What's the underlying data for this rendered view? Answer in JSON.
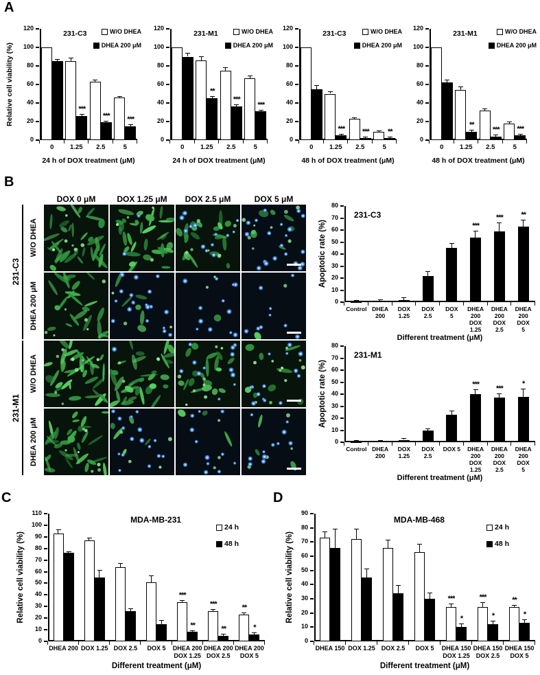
{
  "figure": {
    "background": "#ffffff"
  },
  "panels": {
    "a": {
      "label": "A"
    },
    "b": {
      "label": "B"
    },
    "c": {
      "label": "C"
    },
    "d": {
      "label": "D"
    }
  },
  "colors": {
    "axis": "#000000",
    "bar_open_fill": "#ffffff",
    "bar_filled_fill": "#000000",
    "cell_green": "#3fae4a",
    "cell_green_bright": "#8fe896",
    "nucleus_blue": "#3d86d8",
    "nucleus_blue_center": "#d6efff",
    "tile_bg_green": "#07130b",
    "tile_bg_blue": "#060d15",
    "scale_bar": "#ffffff"
  },
  "chart_data": {
    "a1": {
      "type": "bar",
      "title": "231-C3",
      "ylabel": "Relative cell viability (%)",
      "xlabel": "24 h of DOX treatment (μM)",
      "ymax": 120,
      "ystep": 20,
      "categories": [
        "0",
        "1.25",
        "2.5",
        "5"
      ],
      "legend": {
        "items": [
          {
            "label": "W/O DHEA",
            "fill": "white"
          },
          {
            "label": "DHEA 200 μM",
            "fill": "black"
          }
        ]
      },
      "series": [
        {
          "name": "W/O DHEA",
          "fill": "white",
          "values": [
            100,
            85,
            63,
            46
          ],
          "err": [
            0,
            3,
            1.5,
            1
          ],
          "sig": [
            "",
            "",
            "",
            ""
          ]
        },
        {
          "name": "DHEA 200 μM",
          "fill": "black",
          "values": [
            85,
            26,
            19,
            15
          ],
          "err": [
            2,
            1.5,
            1,
            1
          ],
          "sig": [
            "",
            "***",
            "***",
            "***"
          ]
        }
      ]
    },
    "a2": {
      "type": "bar",
      "title": "231-M1",
      "ylabel": null,
      "xlabel": "24 h of DOX treatment (μM)",
      "ymax": 120,
      "ystep": 20,
      "categories": [
        "0",
        "1.25",
        "2.5",
        "5"
      ],
      "legend": {
        "items": [
          {
            "label": "W/O DHEA",
            "fill": "white"
          },
          {
            "label": "DHEA 200 μM",
            "fill": "black"
          }
        ]
      },
      "series": [
        {
          "name": "W/O DHEA",
          "fill": "white",
          "values": [
            100,
            86,
            75,
            67
          ],
          "err": [
            0,
            4,
            3,
            2
          ],
          "sig": [
            "",
            "",
            "",
            ""
          ]
        },
        {
          "name": "DHEA 200 μM",
          "fill": "black",
          "values": [
            90,
            45,
            36,
            31
          ],
          "err": [
            3,
            2,
            2,
            1
          ],
          "sig": [
            "",
            "**",
            "***",
            "***"
          ]
        }
      ]
    },
    "a3": {
      "type": "bar",
      "title": "231-C3",
      "ylabel": null,
      "xlabel": "48 h of DOX treatment (μM)",
      "ymax": 120,
      "ystep": 20,
      "categories": [
        "0",
        "1.25",
        "2.5",
        "5"
      ],
      "legend": {
        "items": [
          {
            "label": "W/O DHEA",
            "fill": "white"
          },
          {
            "label": "DHEA 200 μM",
            "fill": "black"
          }
        ]
      },
      "series": [
        {
          "name": "W/O DHEA",
          "fill": "white",
          "values": [
            100,
            50,
            23,
            9
          ],
          "err": [
            0,
            2,
            1,
            0.8
          ],
          "sig": [
            "",
            "",
            "",
            ""
          ]
        },
        {
          "name": "DHEA 200 μM",
          "fill": "black",
          "values": [
            55,
            5,
            2,
            2
          ],
          "err": [
            3.5,
            1,
            0.6,
            0.6
          ],
          "sig": [
            "",
            "***",
            "***",
            "**"
          ]
        }
      ]
    },
    "a4": {
      "type": "bar",
      "title": "231-M1",
      "ylabel": null,
      "xlabel": "48 h of DOX treatment (μM)",
      "ymax": 120,
      "ystep": 20,
      "categories": [
        "0",
        "1.25",
        "2.5",
        "5"
      ],
      "legend": {
        "items": [
          {
            "label": "W/O DHEA",
            "fill": "white"
          },
          {
            "label": "DHEA 200 μM",
            "fill": "black"
          }
        ]
      },
      "series": [
        {
          "name": "W/O DHEA",
          "fill": "white",
          "values": [
            100,
            54,
            32,
            18
          ],
          "err": [
            0,
            3,
            1.5,
            1
          ],
          "sig": [
            "",
            "",
            "",
            ""
          ]
        },
        {
          "name": "DHEA 200 μM",
          "fill": "black",
          "values": [
            62,
            9,
            4,
            5
          ],
          "err": [
            2.5,
            1.2,
            1,
            1
          ],
          "sig": [
            "",
            "**",
            "***",
            "***"
          ]
        }
      ]
    },
    "b1": {
      "type": "bar",
      "title": "231-C3",
      "ylabel": "Apoptotic rate (%)",
      "xlabel": "Different treatment (μM)",
      "ymax": 80,
      "ystep": 10,
      "categories": [
        "Control",
        "DHEA\n200",
        "DOX\n1.25",
        "DOX\n2.5",
        "DOX\n5",
        "DHEA\n200\nDOX\n1.25",
        "DHEA\n200\nDOX\n2.5",
        "DHEA\n200\nDOX\n5"
      ],
      "legend": null,
      "series": [
        {
          "name": "Apoptotic rate",
          "fill": "black",
          "values": [
            0.5,
            1,
            2,
            22,
            45,
            54,
            59,
            63
          ],
          "err": [
            0.3,
            0.5,
            1.5,
            3,
            3.5,
            5,
            6.5,
            5
          ],
          "sig": [
            "",
            "",
            "",
            "",
            "",
            "***",
            "***",
            "**"
          ]
        }
      ]
    },
    "b2": {
      "type": "bar",
      "title": "231-M1",
      "ylabel": "Apoptotic rate (%)",
      "xlabel": "Different treatment (μM)",
      "ymax": 80,
      "ystep": 10,
      "categories": [
        "Control",
        "DHEA\n200",
        "DOX\n1.25",
        "DOX\n2.5",
        "DOX 5",
        "DHEA\n200\nDOX\n1.25",
        "DHEA\n200\nDOX\n2.5",
        "DHEA\n200\nDOX\n5"
      ],
      "legend": null,
      "series": [
        {
          "name": "Apoptotic rate",
          "fill": "black",
          "values": [
            0.5,
            1,
            2,
            10,
            23,
            40,
            37,
            38
          ],
          "err": [
            0.3,
            0.4,
            0.8,
            1,
            2.5,
            3.5,
            3,
            6
          ],
          "sig": [
            "",
            "",
            "",
            "",
            "",
            "***",
            "***",
            "*"
          ]
        }
      ]
    },
    "c": {
      "type": "bar",
      "title": "MDA-MB-231",
      "ylabel": "Relative cell viability (%)",
      "xlabel": "Different treatment (μM)",
      "ymax": 110,
      "ystep": 10,
      "categories": [
        "DHEA 200",
        "DOX 1.25",
        "DOX 2.5",
        "DOX 5",
        "DHEA 200\nDOX 1.25",
        "DHEA 200\nDOX 2.5",
        "DHEA 200\nDOX 5"
      ],
      "legend": {
        "items": [
          {
            "label": "24 h",
            "fill": "white"
          },
          {
            "label": "48 h",
            "fill": "black"
          }
        ]
      },
      "series": [
        {
          "name": "24 h",
          "fill": "white",
          "values": [
            93,
            87,
            64,
            51,
            34,
            26,
            23
          ],
          "err": [
            3,
            2,
            3,
            5,
            1,
            1,
            1
          ],
          "sig": [
            "",
            "",
            "",
            "",
            "***",
            "***",
            "**"
          ]
        },
        {
          "name": "48 h",
          "fill": "black",
          "values": [
            76,
            55,
            26,
            15,
            8,
            5,
            6
          ],
          "err": [
            1,
            6,
            2,
            3,
            1,
            1,
            1
          ],
          "sig": [
            "",
            "",
            "",
            "",
            "**",
            "**",
            "*"
          ]
        }
      ]
    },
    "d": {
      "type": "bar",
      "title": "MDA-MB-468",
      "ylabel": "Relative cell viability (%)",
      "xlabel": "Different treatment (μM)",
      "ymax": 90,
      "ystep": 10,
      "categories": [
        "DHEA 150",
        "DOX 1.25",
        "DOX 2.5",
        "DOX 5",
        "DHEA 150\nDOX 1.25",
        "DHEA 150\nDOX 2.5",
        "DHEA 150\nDOX 5"
      ],
      "legend": {
        "items": [
          {
            "label": "24 h",
            "fill": "white"
          },
          {
            "label": "48 h",
            "fill": "black"
          }
        ]
      },
      "series": [
        {
          "name": "24 h",
          "fill": "white",
          "values": [
            73,
            72,
            66,
            63,
            24,
            24,
            24
          ],
          "err": [
            4,
            7,
            5,
            5,
            2,
            3,
            1
          ],
          "sig": [
            "",
            "",
            "",
            "",
            "***",
            "***",
            "**"
          ]
        },
        {
          "name": "48 h",
          "fill": "black",
          "values": [
            66,
            45,
            34,
            30,
            10,
            12,
            13
          ],
          "err": [
            13,
            6,
            5,
            4,
            2,
            2,
            2
          ],
          "sig": [
            "",
            "",
            "",
            "",
            "*",
            "*",
            "*"
          ]
        }
      ]
    }
  },
  "microscopy": {
    "col_headers": [
      "DOX 0 μM",
      "DOX 1.25 μM",
      "DOX 2.5 μM",
      "DOX 5 μM"
    ],
    "groups": [
      {
        "label": "231-C3",
        "rows": [
          {
            "label": "W/O DHEA",
            "tiles": [
              {
                "background": "#07130b",
                "green_spindles": 30,
                "green_blobs": 4,
                "green_dots": 6,
                "blue_dots": 0,
                "scale_bar": false
              },
              {
                "background": "#07130b",
                "green_spindles": 24,
                "green_blobs": 8,
                "green_dots": 4,
                "blue_dots": 2,
                "scale_bar": false
              },
              {
                "background": "#07130b",
                "green_spindles": 8,
                "green_blobs": 12,
                "green_dots": 6,
                "blue_dots": 14,
                "scale_bar": false
              },
              {
                "background": "#060d15",
                "green_spindles": 2,
                "green_blobs": 5,
                "green_dots": 8,
                "blue_dots": 20,
                "scale_bar": true
              }
            ]
          },
          {
            "label": "DHEA 200 μM",
            "tiles": [
              {
                "background": "#07130b",
                "green_spindles": 22,
                "green_blobs": 2,
                "green_dots": 6,
                "blue_dots": 0,
                "scale_bar": false
              },
              {
                "background": "#060d15",
                "green_spindles": 4,
                "green_blobs": 2,
                "green_dots": 3,
                "blue_dots": 18,
                "scale_bar": false
              },
              {
                "background": "#060d15",
                "green_spindles": 0,
                "green_blobs": 1,
                "green_dots": 2,
                "blue_dots": 12,
                "scale_bar": false
              },
              {
                "background": "#060d15",
                "green_spindles": 0,
                "green_blobs": 1,
                "green_dots": 1,
                "blue_dots": 9,
                "scale_bar": true
              }
            ]
          }
        ]
      },
      {
        "label": "231-M1",
        "rows": [
          {
            "label": "W/O DHEA",
            "tiles": [
              {
                "background": "#07130b",
                "green_spindles": 34,
                "green_blobs": 2,
                "green_dots": 8,
                "blue_dots": 0,
                "scale_bar": false
              },
              {
                "background": "#07130b",
                "green_spindles": 22,
                "green_blobs": 12,
                "green_dots": 4,
                "blue_dots": 1,
                "scale_bar": false
              },
              {
                "background": "#07130b",
                "green_spindles": 8,
                "green_blobs": 10,
                "green_dots": 8,
                "blue_dots": 12,
                "scale_bar": false
              },
              {
                "background": "#07130b",
                "green_spindles": 2,
                "green_blobs": 6,
                "green_dots": 10,
                "blue_dots": 14,
                "scale_bar": true
              }
            ]
          },
          {
            "label": "DHEA 200 μM",
            "tiles": [
              {
                "background": "#07130b",
                "green_spindles": 28,
                "green_blobs": 3,
                "green_dots": 7,
                "blue_dots": 0,
                "scale_bar": false
              },
              {
                "background": "#060d15",
                "green_spindles": 3,
                "green_blobs": 2,
                "green_dots": 4,
                "blue_dots": 16,
                "scale_bar": false
              },
              {
                "background": "#060d15",
                "green_spindles": 1,
                "green_blobs": 2,
                "green_dots": 3,
                "blue_dots": 12,
                "scale_bar": false
              },
              {
                "background": "#060d15",
                "green_spindles": 1,
                "green_blobs": 2,
                "green_dots": 4,
                "blue_dots": 12,
                "scale_bar": true
              }
            ]
          }
        ]
      }
    ]
  }
}
